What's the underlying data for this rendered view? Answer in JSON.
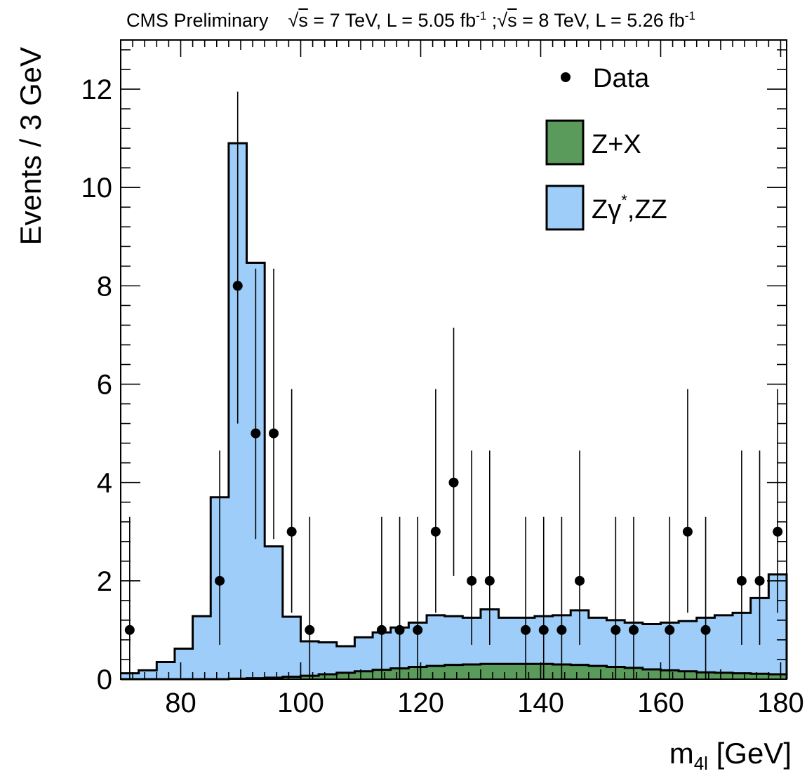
{
  "chart_data": {
    "type": "histogram",
    "header": {
      "label": "CMS Preliminary",
      "run1_sqrt_s": "7 TeV",
      "run1_lumi": "5.05 fb",
      "run2_sqrt_s": "8 TeV",
      "run2_lumi": "5.26 fb",
      "lumi_exp": "-1"
    },
    "xlabel_main": "m",
    "xlabel_sub": "4l",
    "xlabel_unit": "[GeV]",
    "ylabel": "Events / 3 GeV",
    "xlim": [
      70,
      181
    ],
    "ylim": [
      0,
      13
    ],
    "xticks": [
      80,
      100,
      120,
      140,
      160,
      180
    ],
    "yticks": [
      0,
      2,
      4,
      6,
      8,
      10,
      12
    ],
    "bin_width": 3,
    "bin_edges_start": 70,
    "series": [
      {
        "name": "Z+X",
        "color": "#5a9a5a",
        "values": [
          0.0,
          0.0,
          0.0,
          0.0,
          0.0,
          0.0,
          0.01,
          0.02,
          0.03,
          0.05,
          0.07,
          0.1,
          0.13,
          0.16,
          0.19,
          0.22,
          0.25,
          0.27,
          0.29,
          0.3,
          0.31,
          0.31,
          0.31,
          0.31,
          0.3,
          0.29,
          0.27,
          0.25,
          0.23,
          0.2,
          0.18,
          0.16,
          0.14,
          0.13,
          0.12,
          0.11,
          0.1
        ]
      },
      {
        "name": "Zγ*,ZZ",
        "color": "#9dcdf8",
        "total_values": [
          0.12,
          0.18,
          0.35,
          0.62,
          1.28,
          3.7,
          10.9,
          8.47,
          2.7,
          1.27,
          0.77,
          0.75,
          0.67,
          0.85,
          0.95,
          1.05,
          1.15,
          1.3,
          1.28,
          1.25,
          1.42,
          1.25,
          1.25,
          1.28,
          1.3,
          1.4,
          1.25,
          1.2,
          1.15,
          1.12,
          1.15,
          1.18,
          1.25,
          1.3,
          1.35,
          1.65,
          2.13
        ]
      }
    ],
    "data": {
      "name": "Data",
      "points": [
        {
          "x": 71.5,
          "y": 1,
          "lo": 0,
          "hi": 3.3
        },
        {
          "x": 86.5,
          "y": 2,
          "lo": 0.7,
          "hi": 4.65
        },
        {
          "x": 89.5,
          "y": 8,
          "lo": 5.2,
          "hi": 11.95
        },
        {
          "x": 92.5,
          "y": 5,
          "lo": 2.85,
          "hi": 8.35
        },
        {
          "x": 95.5,
          "y": 5,
          "lo": 2.85,
          "hi": 8.35
        },
        {
          "x": 98.5,
          "y": 3,
          "lo": 1.35,
          "hi": 5.9
        },
        {
          "x": 101.5,
          "y": 1,
          "lo": 0,
          "hi": 3.3
        },
        {
          "x": 113.5,
          "y": 1,
          "lo": 0,
          "hi": 3.3
        },
        {
          "x": 116.5,
          "y": 1,
          "lo": 0,
          "hi": 3.3
        },
        {
          "x": 119.5,
          "y": 1,
          "lo": 0,
          "hi": 3.3
        },
        {
          "x": 122.5,
          "y": 3,
          "lo": 1.35,
          "hi": 5.9
        },
        {
          "x": 125.5,
          "y": 4,
          "lo": 2.1,
          "hi": 7.15
        },
        {
          "x": 128.5,
          "y": 2,
          "lo": 0.7,
          "hi": 4.65
        },
        {
          "x": 131.5,
          "y": 2,
          "lo": 0.7,
          "hi": 4.65
        },
        {
          "x": 137.5,
          "y": 1,
          "lo": 0,
          "hi": 3.3
        },
        {
          "x": 140.5,
          "y": 1,
          "lo": 0,
          "hi": 3.3
        },
        {
          "x": 143.5,
          "y": 1,
          "lo": 0,
          "hi": 3.3
        },
        {
          "x": 146.5,
          "y": 2,
          "lo": 0.7,
          "hi": 4.65
        },
        {
          "x": 152.5,
          "y": 1,
          "lo": 0,
          "hi": 3.3
        },
        {
          "x": 155.5,
          "y": 1,
          "lo": 0,
          "hi": 3.3
        },
        {
          "x": 161.5,
          "y": 1,
          "lo": 0,
          "hi": 3.3
        },
        {
          "x": 164.5,
          "y": 3,
          "lo": 1.35,
          "hi": 5.9
        },
        {
          "x": 167.5,
          "y": 1,
          "lo": 0,
          "hi": 3.3
        },
        {
          "x": 173.5,
          "y": 2,
          "lo": 0.7,
          "hi": 4.65
        },
        {
          "x": 176.5,
          "y": 2,
          "lo": 0.7,
          "hi": 4.65
        },
        {
          "x": 179.5,
          "y": 3,
          "lo": 1.35,
          "hi": 5.9
        }
      ]
    },
    "legend": {
      "position": "top-right",
      "entries": [
        {
          "label": "Data",
          "marker": "dot"
        },
        {
          "label": "Z+X",
          "marker": "box",
          "color": "#5a9a5a"
        },
        {
          "label": "Zγ",
          "label_sup": "*",
          "label_tail": ",ZZ",
          "marker": "box",
          "color": "#9dcdf8"
        }
      ]
    }
  }
}
